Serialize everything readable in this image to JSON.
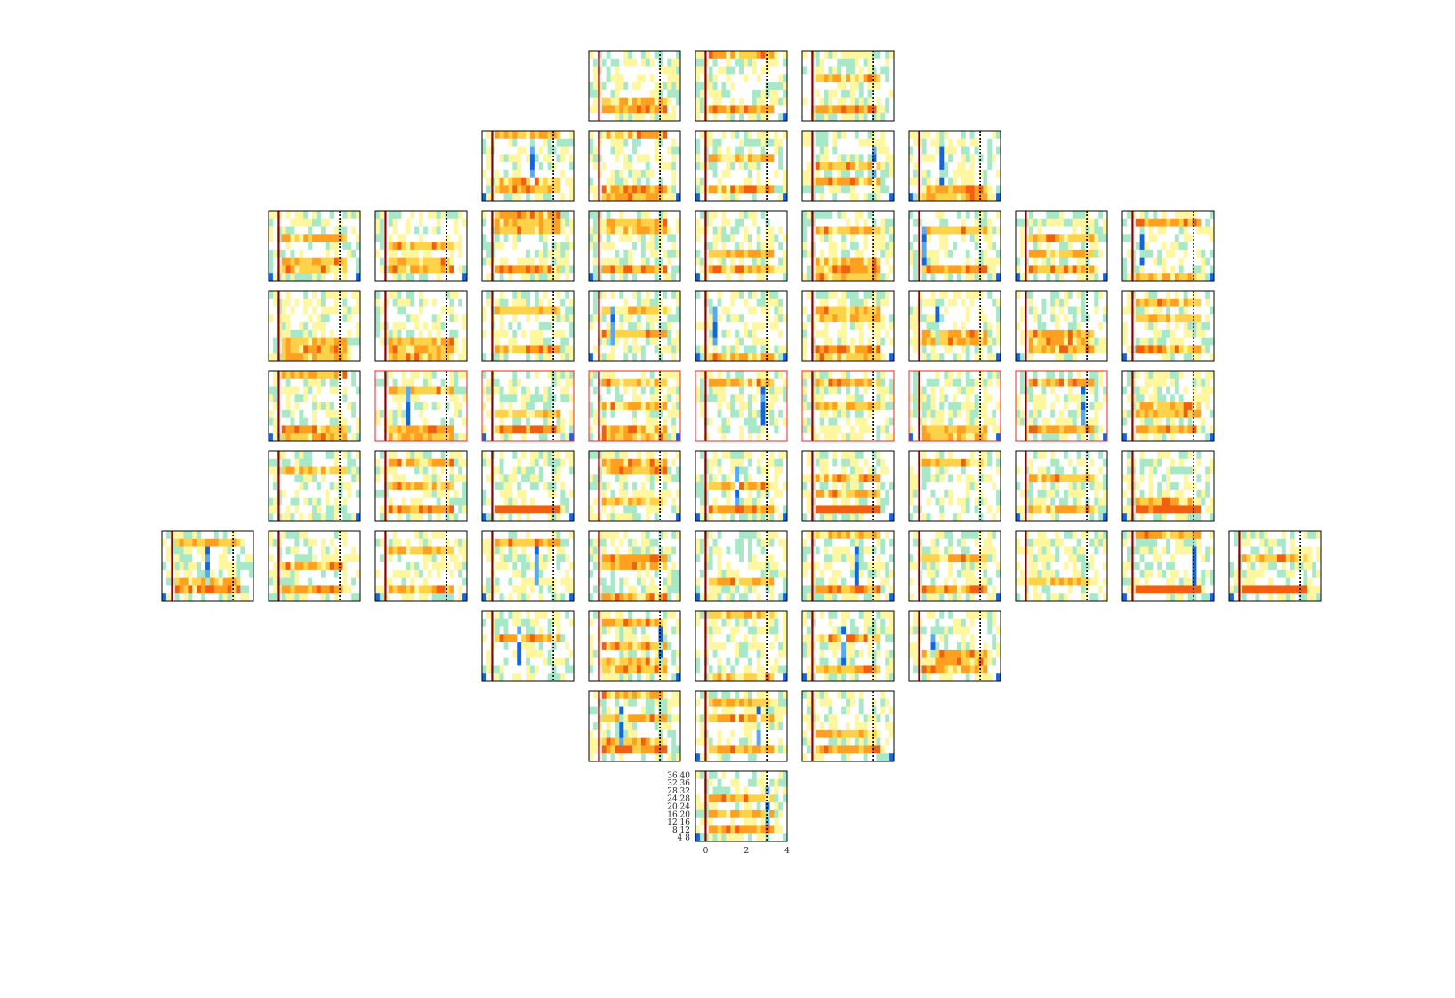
{
  "chart_data": {
    "type": "heatmap",
    "title": "",
    "xlabel": "",
    "ylabel": "",
    "description_layout": "electrode array of time-frequency maps",
    "x_tick_labels": [
      "0",
      "2",
      "4"
    ],
    "y_tick_labels": [
      "36 40",
      "32 36",
      "28 32",
      "24 28",
      "20 24",
      "16 20",
      "12 16",
      "8 12",
      "4 8"
    ],
    "xlim": [
      -0.5,
      4
    ],
    "event_lines": [
      {
        "x": 0,
        "style": "solid",
        "color": "#8b0000"
      },
      {
        "x": 3.0,
        "style": "dotted",
        "color": "#000000"
      }
    ],
    "colormap": [
      "#1565e0",
      "#5aa9f0",
      "#a6e8c8",
      "#ffffff",
      "#fff6a0",
      "#ffd24a",
      "#ffa020",
      "#f06010"
    ],
    "highlight_color": "#e8262a",
    "panel_rows": [
      {
        "cols": [
          4,
          5,
          6
        ]
      },
      {
        "cols": [
          3,
          4,
          5,
          6,
          7
        ]
      },
      {
        "cols": [
          1,
          2,
          3,
          4,
          5,
          6,
          7,
          8,
          9
        ]
      },
      {
        "cols": [
          1,
          2,
          3,
          4,
          5,
          6,
          7,
          8,
          9
        ]
      },
      {
        "cols": [
          1,
          2,
          3,
          4,
          5,
          6,
          7,
          8,
          9
        ],
        "highlighted": [
          2,
          3,
          4,
          5,
          6,
          7,
          8
        ]
      },
      {
        "cols": [
          1,
          2,
          3,
          4,
          5,
          6,
          7,
          8,
          9
        ]
      },
      {
        "cols": [
          0,
          1,
          2,
          3,
          4,
          5,
          6,
          7,
          8,
          9,
          10
        ]
      },
      {
        "cols": [
          3,
          4,
          5,
          6,
          7
        ]
      },
      {
        "cols": [
          4,
          5,
          6
        ]
      },
      {
        "cols": [
          5
        ],
        "axes": true
      }
    ]
  }
}
